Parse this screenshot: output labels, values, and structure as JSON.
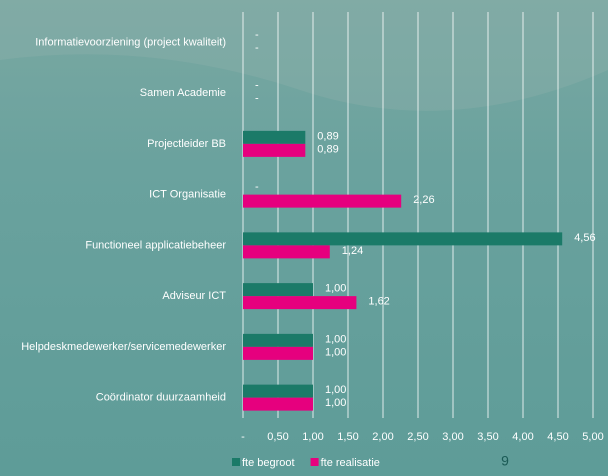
{
  "chart_data": {
    "type": "hbar",
    "categories": [
      "Informatievoorziening (project kwaliteit)",
      "Samen Academie",
      "Projectleider BB",
      "ICT Organisatie",
      "Functioneel applicatiebeheer",
      "Adviseur ICT",
      "Helpdeskmedewerker/servicemedewerker",
      "Coördinator duurzaamheid"
    ],
    "series": [
      {
        "name": "fte begroot",
        "color": "#1b7a68",
        "values": [
          0,
          0,
          0.89,
          0,
          4.56,
          1.0,
          1.0,
          1.0
        ],
        "value_labels": [
          "-",
          "-",
          "0,89",
          "-",
          "4,56",
          "1,00",
          "1,00",
          "1,00"
        ]
      },
      {
        "name": "fte realisatie",
        "color": "#e6007e",
        "values": [
          0,
          0,
          0.89,
          2.26,
          1.24,
          1.62,
          1.0,
          1.0
        ],
        "value_labels": [
          "-",
          "-",
          "0,89",
          "2,26",
          "1,24",
          "1,62",
          "1,00",
          "1,00"
        ]
      }
    ],
    "xlim": [
      0,
      5
    ],
    "xticks": [
      {
        "value": 0,
        "label": "-"
      },
      {
        "value": 0.5,
        "label": "0,50"
      },
      {
        "value": 1,
        "label": "1,00"
      },
      {
        "value": 1.5,
        "label": "1,50"
      },
      {
        "value": 2,
        "label": "2,00"
      },
      {
        "value": 2.5,
        "label": "2,50"
      },
      {
        "value": 3,
        "label": "3,00"
      },
      {
        "value": 3.5,
        "label": "3,50"
      },
      {
        "value": 4,
        "label": "4,00"
      },
      {
        "value": 4.5,
        "label": "4,50"
      },
      {
        "value": 5,
        "label": "5,00"
      }
    ],
    "grid": true,
    "legend": "bottom"
  },
  "footer": {
    "page_number": "9"
  }
}
